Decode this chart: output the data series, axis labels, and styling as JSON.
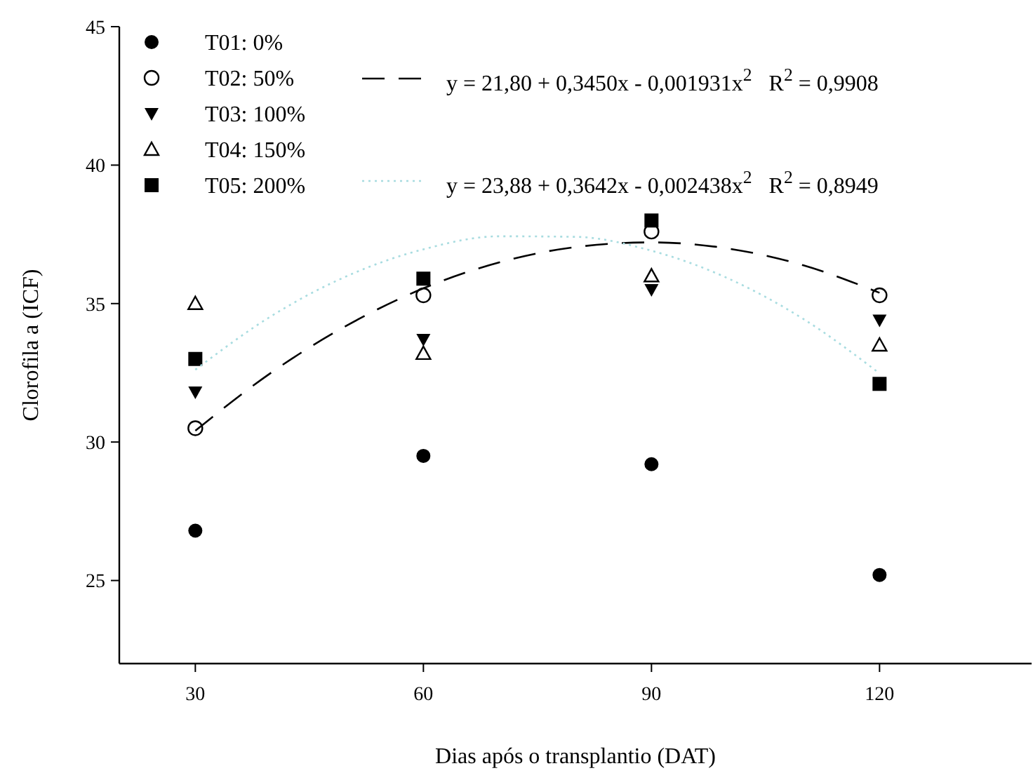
{
  "chart_data": {
    "type": "scatter",
    "xlabel": "Dias após o transplantio (DAT)",
    "ylabel": "Clorofila a (ICF)",
    "xlim": [
      20,
      140
    ],
    "ylim": [
      22,
      45
    ],
    "xticks": [
      30,
      60,
      90,
      120
    ],
    "yticks": [
      25,
      30,
      35,
      40,
      45
    ],
    "grid": false,
    "legend": "top left",
    "x": [
      30,
      60,
      90,
      120
    ],
    "series": [
      {
        "name": "T01: 0%",
        "color": "#000000",
        "marker": "circle",
        "values": [
          26.8,
          29.5,
          29.2,
          25.2
        ]
      },
      {
        "name": "T02: 50%",
        "color": "#000000",
        "marker": "circle-open",
        "values": [
          30.5,
          35.3,
          37.6,
          35.3
        ]
      },
      {
        "name": "T03: 100%",
        "color": "#000000",
        "marker": "triangle-down",
        "values": [
          31.8,
          33.7,
          35.5,
          34.4
        ]
      },
      {
        "name": "T04: 150%",
        "color": "#000000",
        "marker": "triangle-open",
        "values": [
          35.0,
          33.2,
          36.0,
          33.5
        ]
      },
      {
        "name": "T05: 200%",
        "color": "#000000",
        "marker": "square",
        "values": [
          33.0,
          35.9,
          38.0,
          32.1
        ]
      },
      {
        "name": "y = 21,80 + 0,3450x - 0,001931x$^{2}$   R$^{2}$ = 0,9908",
        "type": "line",
        "color": "#000000",
        "line_style": "dashed",
        "marker": "none",
        "x": [
          30,
          40,
          50,
          60,
          70,
          80,
          90,
          100,
          110,
          120
        ],
        "values": [
          30.41,
          32.51,
          34.22,
          35.55,
          36.49,
          37.04,
          37.21,
          36.99,
          36.38,
          35.39
        ]
      },
      {
        "name": "y = 23,88 + 0,3642x - 0,002438x$^{2}$   R$^{2}$ = 0,8949",
        "type": "line",
        "color": "#a8dce0",
        "line_style": "dotted",
        "marker": "none",
        "x": [
          30,
          40,
          50,
          60,
          70,
          80,
          90,
          100,
          110,
          120
        ],
        "values": [
          32.61,
          34.55,
          36.0,
          36.96,
          37.43,
          37.41,
          36.91,
          35.92,
          34.44,
          32.48
        ]
      }
    ]
  }
}
